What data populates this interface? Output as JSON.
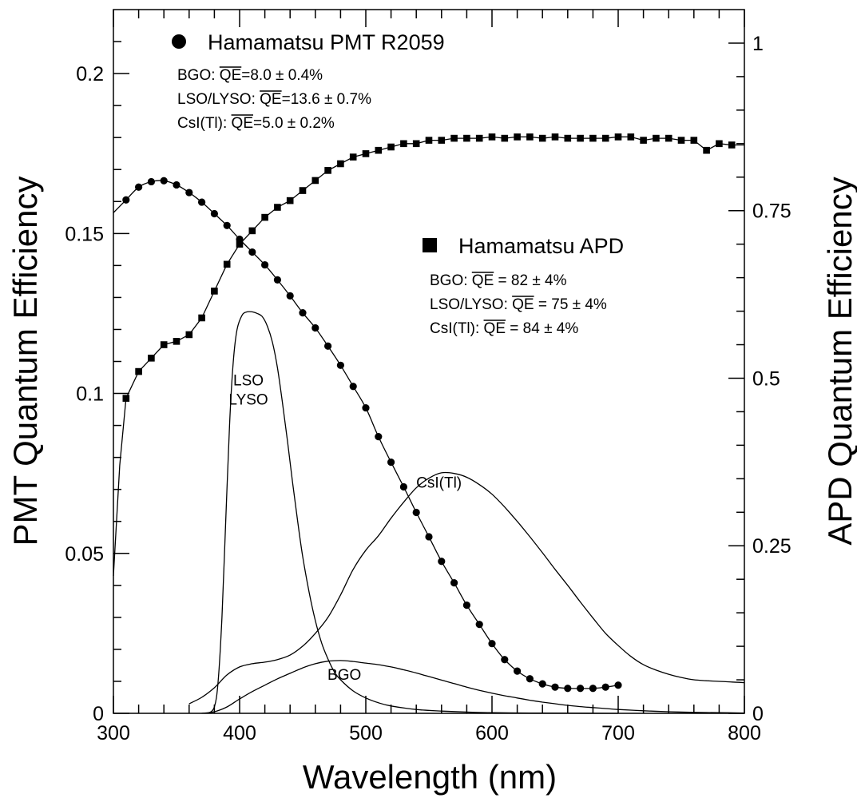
{
  "chart_data": {
    "type": "line",
    "xlabel": "Wavelength (nm)",
    "ylabel_left": "PMT Quantum Efficiency",
    "ylabel_right": "APD Quantum Efficiency",
    "xlim": [
      300,
      800
    ],
    "ylim_left": [
      0,
      0.22
    ],
    "ylim_right": [
      0,
      1.05
    ],
    "x_ticks": [
      "300",
      "400",
      "500",
      "600",
      "700",
      "800"
    ],
    "y_ticks_left": [
      "0",
      "0.05",
      "0.1",
      "0.15",
      "0.2"
    ],
    "y_ticks_right": [
      "0",
      "0.25",
      "0.5",
      "0.75",
      "1"
    ],
    "grid": false,
    "legends": [
      {
        "marker": "circle",
        "title": "Hamamatsu PMT R2059",
        "lines": [
          {
            "name": "BGO: ",
            "qe": "QE",
            "value": "=8.0 ± 0.4%"
          },
          {
            "name": "LSO/LYSO: ",
            "qe": "QE",
            "value": "=13.6 ± 0.7%"
          },
          {
            "name": "CsI(Tl): ",
            "qe": "QE",
            "value": "=5.0 ± 0.2%"
          }
        ]
      },
      {
        "marker": "square",
        "title": "Hamamatsu APD",
        "lines": [
          {
            "name": "BGO: ",
            "qe": "QE",
            "value": " = 82 ± 4%"
          },
          {
            "name": "LSO/LYSO: ",
            "qe": "QE",
            "value": " = 75 ± 4%"
          },
          {
            "name": "CsI(Tl): ",
            "qe": "QE",
            "value": " = 84 ± 4%"
          }
        ]
      }
    ],
    "curve_labels": [
      {
        "text": "LSO",
        "x": 407,
        "y": 0.1025
      },
      {
        "text": "LYSO",
        "x": 407,
        "y": 0.0965
      },
      {
        "text": "CsI(Tl)",
        "x": 558,
        "y": 0.0705
      },
      {
        "text": "BGO",
        "x": 483,
        "y": 0.0105
      }
    ],
    "series": [
      {
        "marker": "circle",
        "axis": "left",
        "x": [
          310,
          320,
          330,
          340,
          350,
          360,
          370,
          380,
          390,
          400,
          410,
          420,
          430,
          440,
          450,
          460,
          470,
          480,
          490,
          500,
          510,
          520,
          530,
          540,
          550,
          560,
          570,
          580,
          590,
          600,
          610,
          620,
          630,
          640,
          650,
          660,
          670,
          680,
          690,
          700
        ],
        "y": [
          0.1605,
          0.1645,
          0.1662,
          0.1665,
          0.1652,
          0.1628,
          0.1598,
          0.1562,
          0.1525,
          0.1482,
          0.1442,
          0.1402,
          0.1355,
          0.1305,
          0.1252,
          0.1205,
          0.1148,
          0.1088,
          0.1022,
          0.0955,
          0.0865,
          0.0785,
          0.0708,
          0.0628,
          0.0552,
          0.0475,
          0.0408,
          0.0338,
          0.0278,
          0.0218,
          0.0168,
          0.0132,
          0.0108,
          0.0092,
          0.0082,
          0.0078,
          0.0078,
          0.0078,
          0.0082,
          0.0088
        ]
      },
      {
        "marker": "square",
        "axis": "right",
        "x": [
          310,
          320,
          330,
          340,
          350,
          360,
          370,
          380,
          390,
          400,
          410,
          420,
          430,
          440,
          450,
          460,
          470,
          480,
          490,
          500,
          510,
          520,
          530,
          540,
          550,
          560,
          570,
          580,
          590,
          600,
          610,
          620,
          630,
          640,
          650,
          660,
          670,
          680,
          690,
          700,
          710,
          720,
          730,
          740,
          750,
          760,
          770,
          780,
          790
        ],
        "y": [
          0.47,
          0.51,
          0.53,
          0.55,
          0.555,
          0.565,
          0.59,
          0.63,
          0.67,
          0.7,
          0.72,
          0.74,
          0.755,
          0.765,
          0.78,
          0.795,
          0.81,
          0.82,
          0.83,
          0.835,
          0.84,
          0.845,
          0.85,
          0.85,
          0.855,
          0.855,
          0.858,
          0.858,
          0.858,
          0.86,
          0.858,
          0.86,
          0.86,
          0.858,
          0.86,
          0.858,
          0.858,
          0.858,
          0.858,
          0.86,
          0.86,
          0.855,
          0.858,
          0.858,
          0.855,
          0.855,
          0.84,
          0.85,
          0.848
        ]
      }
    ],
    "emission_curves": [
      {
        "label": "LSO/LYSO",
        "axis": "left",
        "x": [
          375,
          380,
          383,
          386,
          389,
          392,
          395,
          398,
          402,
          406,
          410,
          414,
          418,
          422,
          426,
          430,
          434,
          438,
          442,
          446,
          450,
          455,
          460,
          465,
          470,
          475,
          480,
          490,
          500,
          510,
          520,
          540,
          560,
          580,
          600,
          630,
          660,
          700
        ],
        "y": [
          0.0,
          0.002,
          0.01,
          0.03,
          0.06,
          0.09,
          0.11,
          0.12,
          0.1245,
          0.1255,
          0.1255,
          0.125,
          0.124,
          0.121,
          0.116,
          0.108,
          0.097,
          0.085,
          0.072,
          0.06,
          0.049,
          0.038,
          0.029,
          0.022,
          0.017,
          0.013,
          0.0105,
          0.007,
          0.0048,
          0.0033,
          0.0023,
          0.0012,
          0.0007,
          0.0004,
          0.0002,
          0.0001,
          5e-05,
          0.0
        ]
      },
      {
        "label": "CsI(Tl)",
        "axis": "left",
        "x": [
          360,
          370,
          380,
          390,
          400,
          410,
          420,
          430,
          440,
          450,
          460,
          470,
          480,
          490,
          500,
          510,
          520,
          530,
          540,
          550,
          560,
          570,
          580,
          590,
          600,
          610,
          620,
          630,
          640,
          650,
          660,
          670,
          680,
          690,
          700,
          710,
          720,
          730,
          740,
          750,
          760,
          770,
          780,
          790,
          800
        ],
        "y": [
          0.003,
          0.005,
          0.008,
          0.012,
          0.0145,
          0.0155,
          0.016,
          0.0168,
          0.0182,
          0.021,
          0.025,
          0.03,
          0.037,
          0.045,
          0.051,
          0.0555,
          0.061,
          0.066,
          0.0705,
          0.0735,
          0.0752,
          0.075,
          0.0738,
          0.0715,
          0.0685,
          0.0645,
          0.06,
          0.0552,
          0.0502,
          0.045,
          0.04,
          0.0348,
          0.0298,
          0.025,
          0.0212,
          0.0178,
          0.0152,
          0.0135,
          0.0122,
          0.0112,
          0.0105,
          0.0102,
          0.01,
          0.0098,
          0.0096
        ]
      },
      {
        "label": "BGO",
        "axis": "left",
        "x": [
          370,
          380,
          390,
          400,
          410,
          420,
          430,
          440,
          450,
          460,
          470,
          480,
          490,
          500,
          510,
          520,
          530,
          540,
          550,
          560,
          570,
          580,
          590,
          600,
          610,
          620,
          630,
          640,
          650,
          660,
          670,
          680,
          690,
          700,
          720,
          740,
          760,
          780,
          800
        ],
        "y": [
          0.0,
          0.0005,
          0.002,
          0.0045,
          0.0068,
          0.0088,
          0.0108,
          0.0125,
          0.0142,
          0.0155,
          0.0163,
          0.0165,
          0.0162,
          0.0157,
          0.0152,
          0.0145,
          0.0136,
          0.0126,
          0.0115,
          0.0104,
          0.0093,
          0.0082,
          0.0072,
          0.0063,
          0.0055,
          0.0048,
          0.0041,
          0.0035,
          0.003,
          0.0025,
          0.0021,
          0.0018,
          0.0015,
          0.0012,
          0.0008,
          0.0005,
          0.0003,
          0.0002,
          0.0001
        ]
      }
    ]
  }
}
